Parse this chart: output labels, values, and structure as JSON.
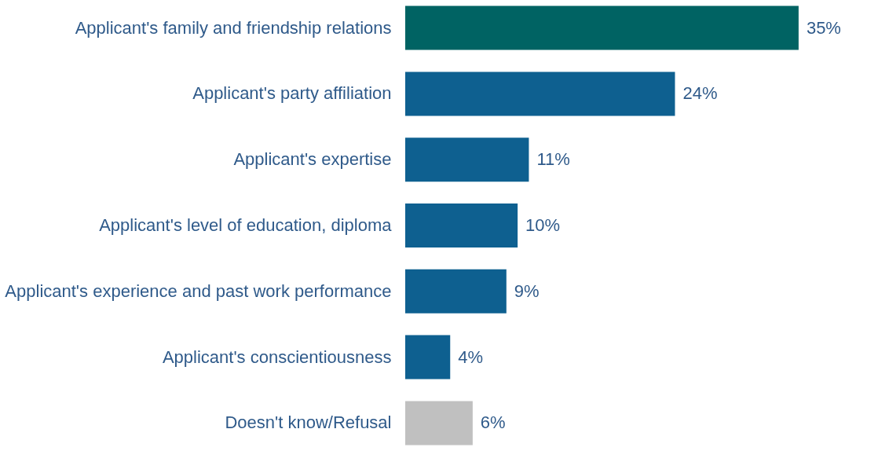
{
  "chart_data": {
    "type": "bar",
    "orientation": "horizontal",
    "categories": [
      "Applicant's family and friendship relations",
      "Applicant's party affiliation",
      "Applicant's expertise",
      "Applicant's level of education, diploma",
      "Applicant's experience and past work performance",
      "Applicant's conscientiousness",
      "Doesn't know/Refusal"
    ],
    "values": [
      35,
      24,
      11,
      10,
      9,
      4,
      6
    ],
    "value_labels": [
      "35%",
      "24%",
      "11%",
      "10%",
      "9%",
      "4%",
      "6%"
    ],
    "colors": [
      "#006363",
      "#0e6090",
      "#0e6090",
      "#0e6090",
      "#0e6090",
      "#0e6090",
      "#c0c0c0"
    ]
  }
}
